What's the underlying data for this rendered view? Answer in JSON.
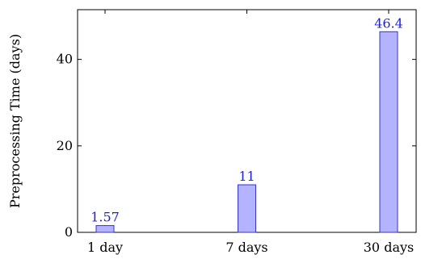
{
  "chart_data": {
    "type": "bar",
    "categories": [
      "1 day",
      "7 days",
      "30 days"
    ],
    "values": [
      1.57,
      11,
      46.4
    ],
    "value_labels": [
      "1.57",
      "11",
      "46.4"
    ],
    "title": "",
    "xlabel": "",
    "ylabel": "Preprocessing Time (days)",
    "ylim": [
      0,
      51.5
    ],
    "yticks": [
      0,
      20,
      40
    ],
    "ytick_labels": [
      "0",
      "20",
      "40"
    ],
    "grid": false,
    "legend": "none",
    "colors": {
      "bar_fill": "#b3b3ff",
      "bar_stroke": "#3333cc",
      "label_text": "#1f1fd6",
      "axis": "#000000"
    }
  }
}
